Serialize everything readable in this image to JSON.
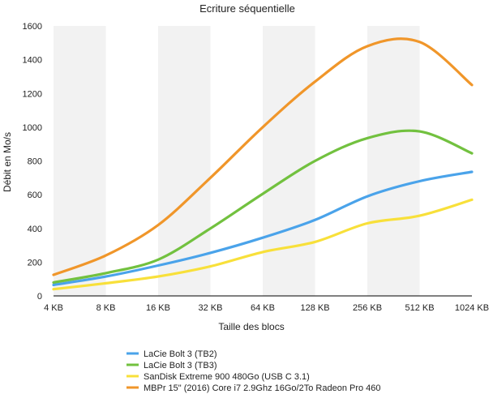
{
  "chart_data": {
    "type": "line",
    "title": "Ecriture séquentielle",
    "xlabel": "Taille des blocs",
    "ylabel": "Débit en Mo/s",
    "categories": [
      "4 KB",
      "8 KB",
      "16 KB",
      "32 KB",
      "64 KB",
      "128 KB",
      "256 KB",
      "512 KB",
      "1024 KB"
    ],
    "ylim": [
      0,
      1600
    ],
    "yticks": [
      "0",
      "200",
      "400",
      "600",
      "800",
      "1000",
      "1200",
      "1400",
      "1600"
    ],
    "grid": "vertical bands",
    "legend": "bottom",
    "series": [
      {
        "name": "LaCie Bolt 3 (TB2)",
        "color": "#4aa3ea",
        "values": [
          65,
          115,
          180,
          255,
          345,
          450,
          590,
          680,
          735
        ]
      },
      {
        "name": "LaCie Bolt 3 (TB3)",
        "color": "#72c13f",
        "values": [
          80,
          135,
          215,
          400,
          605,
          800,
          935,
          975,
          845
        ]
      },
      {
        "name": "SanDisk Extreme 900 480Go (USB C 3.1)",
        "color": "#f8e03a",
        "values": [
          40,
          75,
          115,
          175,
          260,
          320,
          430,
          475,
          570
        ]
      },
      {
        "name": "MBPr 15\" (2016) Core i7 2.9Ghz 16Go/2To Radeon Pro 460",
        "color": "#f0962a",
        "values": [
          125,
          240,
          420,
          700,
          1000,
          1270,
          1480,
          1505,
          1250
        ]
      }
    ]
  }
}
